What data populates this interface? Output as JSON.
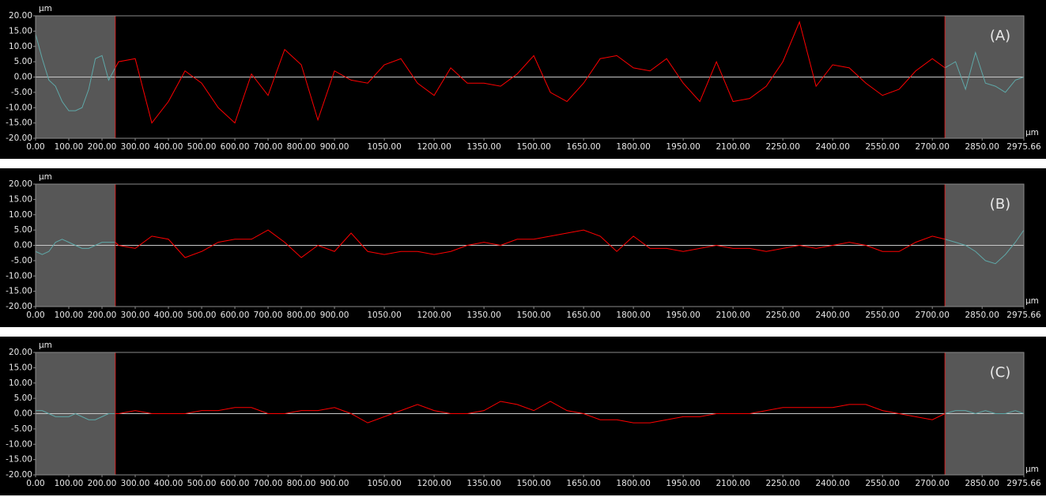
{
  "chart_data": [
    {
      "type": "line",
      "annotation": "(A)",
      "y_unit": "µm",
      "x_unit": "µm",
      "xlim": [
        0,
        2975.66
      ],
      "ylim": [
        -20,
        20
      ],
      "yticks": [
        {
          "value": 20,
          "label": "20.00"
        },
        {
          "value": 15,
          "label": "15.00"
        },
        {
          "value": 10,
          "label": "10.00"
        },
        {
          "value": 5,
          "label": "5.00"
        },
        {
          "value": 0,
          "label": "0.00"
        },
        {
          "value": -5,
          "label": "-5.00"
        },
        {
          "value": -10,
          "label": "-10.00"
        },
        {
          "value": -15,
          "label": "-15.00"
        },
        {
          "value": -20,
          "label": "-20.00"
        }
      ],
      "xticks": [
        {
          "value": 0,
          "label": "0.00"
        },
        {
          "value": 100,
          "label": "100.00"
        },
        {
          "value": 200,
          "label": "200.00"
        },
        {
          "value": 300,
          "label": "300.00"
        },
        {
          "value": 400,
          "label": "400.00"
        },
        {
          "value": 500,
          "label": "500.00"
        },
        {
          "value": 600,
          "label": "600.00"
        },
        {
          "value": 700,
          "label": "700.00"
        },
        {
          "value": 800,
          "label": "800.00"
        },
        {
          "value": 900,
          "label": "900.00"
        },
        {
          "value": 1050,
          "label": "1050.00"
        },
        {
          "value": 1200,
          "label": "1200.00"
        },
        {
          "value": 1350,
          "label": "1350.00"
        },
        {
          "value": 1500,
          "label": "1500.00"
        },
        {
          "value": 1650,
          "label": "1650.00"
        },
        {
          "value": 1800,
          "label": "1800.00"
        },
        {
          "value": 1950,
          "label": "1950.00"
        },
        {
          "value": 2100,
          "label": "2100.00"
        },
        {
          "value": 2250,
          "label": "2250.00"
        },
        {
          "value": 2400,
          "label": "2400.00"
        },
        {
          "value": 2550,
          "label": "2550.00"
        },
        {
          "value": 2700,
          "label": "2700.00"
        },
        {
          "value": 2850,
          "label": "2850.00"
        },
        {
          "value": 2975.66,
          "label": "2975.66"
        }
      ],
      "excluded_ranges": [
        [
          0,
          240
        ],
        [
          2738,
          2975.66
        ]
      ],
      "shade_color": "#575757",
      "boundary_color": "#d02020",
      "series": [
        {
          "color": "#5fa8a8",
          "x": [
            0,
            20,
            40,
            60,
            80,
            100,
            120,
            140,
            160,
            180,
            200,
            220,
            240
          ],
          "values": [
            14,
            6,
            -1,
            -3,
            -8,
            -11,
            -11,
            -10,
            -4,
            6,
            7,
            -1,
            3
          ]
        },
        {
          "color": "#ff0000",
          "x": [
            240,
            250,
            300,
            350,
            400,
            450,
            500,
            550,
            600,
            650,
            700,
            750,
            800,
            850,
            900,
            950,
            1000,
            1050,
            1100,
            1150,
            1200,
            1250,
            1300,
            1350,
            1400,
            1450,
            1500,
            1550,
            1600,
            1650,
            1700,
            1750,
            1800,
            1850,
            1900,
            1950,
            2000,
            2050,
            2100,
            2150,
            2200,
            2250,
            2300,
            2350,
            2400,
            2450,
            2500,
            2550,
            2600,
            2650,
            2700,
            2738
          ],
          "values": [
            3,
            5,
            6,
            -15,
            -8,
            2,
            -2,
            -10,
            -15,
            1,
            -6,
            9,
            4,
            -14,
            2,
            -1,
            -2,
            4,
            6,
            -2,
            -6,
            3,
            -2,
            -2,
            -3,
            1,
            7,
            -5,
            -8,
            -2,
            6,
            7,
            3,
            2,
            6,
            -2,
            -8,
            5,
            -8,
            -7,
            -3,
            5,
            18,
            -3,
            4,
            3,
            -2,
            -6,
            -4,
            2,
            6,
            3
          ]
        },
        {
          "color": "#5fa8a8",
          "x": [
            2738,
            2770,
            2800,
            2830,
            2860,
            2890,
            2920,
            2950,
            2975.66
          ],
          "values": [
            3,
            5,
            -4,
            8,
            -2,
            -3,
            -5,
            -1,
            0
          ]
        }
      ]
    },
    {
      "type": "line",
      "annotation": "(B)",
      "y_unit": "µm",
      "x_unit": "µm",
      "xlim": [
        0,
        2975.66
      ],
      "ylim": [
        -20,
        20
      ],
      "yticks": [
        {
          "value": 20,
          "label": "20.00"
        },
        {
          "value": 15,
          "label": "15.00"
        },
        {
          "value": 10,
          "label": "10.00"
        },
        {
          "value": 5,
          "label": "5.00"
        },
        {
          "value": 0,
          "label": "0.00"
        },
        {
          "value": -5,
          "label": "-5.00"
        },
        {
          "value": -10,
          "label": "-10.00"
        },
        {
          "value": -15,
          "label": "-15.00"
        },
        {
          "value": -20,
          "label": "-20.00"
        }
      ],
      "xticks": [
        {
          "value": 0,
          "label": "0.00"
        },
        {
          "value": 100,
          "label": "100.00"
        },
        {
          "value": 200,
          "label": "200.00"
        },
        {
          "value": 300,
          "label": "300.00"
        },
        {
          "value": 400,
          "label": "400.00"
        },
        {
          "value": 500,
          "label": "500.00"
        },
        {
          "value": 600,
          "label": "600.00"
        },
        {
          "value": 700,
          "label": "700.00"
        },
        {
          "value": 800,
          "label": "800.00"
        },
        {
          "value": 900,
          "label": "900.00"
        },
        {
          "value": 1050,
          "label": "1050.00"
        },
        {
          "value": 1200,
          "label": "1200.00"
        },
        {
          "value": 1350,
          "label": "1350.00"
        },
        {
          "value": 1500,
          "label": "1500.00"
        },
        {
          "value": 1650,
          "label": "1650.00"
        },
        {
          "value": 1800,
          "label": "1800.00"
        },
        {
          "value": 1950,
          "label": "1950.00"
        },
        {
          "value": 2100,
          "label": "2100.00"
        },
        {
          "value": 2250,
          "label": "2250.00"
        },
        {
          "value": 2400,
          "label": "2400.00"
        },
        {
          "value": 2550,
          "label": "2550.00"
        },
        {
          "value": 2700,
          "label": "2700.00"
        },
        {
          "value": 2850,
          "label": "2850.00"
        },
        {
          "value": 2975.66,
          "label": "2975.66"
        }
      ],
      "excluded_ranges": [
        [
          0,
          240
        ],
        [
          2738,
          2975.66
        ]
      ],
      "shade_color": "#575757",
      "boundary_color": "#d02020",
      "series": [
        {
          "color": "#5fa8a8",
          "x": [
            0,
            20,
            40,
            60,
            80,
            100,
            120,
            140,
            160,
            180,
            200,
            220,
            240
          ],
          "values": [
            -2,
            -3,
            -2,
            1,
            2,
            1,
            0,
            -1,
            -1,
            0,
            1,
            1,
            1
          ]
        },
        {
          "color": "#ff0000",
          "x": [
            240,
            250,
            300,
            350,
            400,
            450,
            500,
            550,
            600,
            650,
            700,
            750,
            800,
            850,
            900,
            950,
            1000,
            1050,
            1100,
            1150,
            1200,
            1250,
            1300,
            1350,
            1400,
            1450,
            1500,
            1550,
            1600,
            1650,
            1700,
            1750,
            1800,
            1850,
            1900,
            1950,
            2000,
            2050,
            2100,
            2150,
            2200,
            2250,
            2300,
            2350,
            2400,
            2450,
            2500,
            2550,
            2600,
            2650,
            2700,
            2738
          ],
          "values": [
            1,
            0,
            -1,
            3,
            2,
            -4,
            -2,
            1,
            2,
            2,
            5,
            1,
            -4,
            0,
            -2,
            4,
            -2,
            -3,
            -2,
            -2,
            -3,
            -2,
            0,
            1,
            0,
            2,
            2,
            3,
            4,
            5,
            3,
            -2,
            3,
            -1,
            -1,
            -2,
            -1,
            0,
            -1,
            -1,
            -2,
            -1,
            0,
            -1,
            0,
            1,
            0,
            -2,
            -2,
            1,
            3,
            2
          ]
        },
        {
          "color": "#5fa8a8",
          "x": [
            2738,
            2770,
            2800,
            2830,
            2860,
            2890,
            2920,
            2950,
            2975.66
          ],
          "values": [
            2,
            1,
            0,
            -2,
            -5,
            -6,
            -3,
            1,
            5
          ]
        }
      ]
    },
    {
      "type": "line",
      "annotation": "(C)",
      "y_unit": "µm",
      "x_unit": "µm",
      "xlim": [
        0,
        2975.66
      ],
      "ylim": [
        -20,
        20
      ],
      "yticks": [
        {
          "value": 20,
          "label": "20.00"
        },
        {
          "value": 15,
          "label": "15.00"
        },
        {
          "value": 10,
          "label": "10.00"
        },
        {
          "value": 5,
          "label": "5.00"
        },
        {
          "value": 0,
          "label": "0.00"
        },
        {
          "value": -5,
          "label": "-5.00"
        },
        {
          "value": -10,
          "label": "-10.00"
        },
        {
          "value": -15,
          "label": "-15.00"
        },
        {
          "value": -20,
          "label": "-20.00"
        }
      ],
      "xticks": [
        {
          "value": 0,
          "label": "0.00"
        },
        {
          "value": 100,
          "label": "100.00"
        },
        {
          "value": 200,
          "label": "200.00"
        },
        {
          "value": 300,
          "label": "300.00"
        },
        {
          "value": 400,
          "label": "400.00"
        },
        {
          "value": 500,
          "label": "500.00"
        },
        {
          "value": 600,
          "label": "600.00"
        },
        {
          "value": 700,
          "label": "700.00"
        },
        {
          "value": 800,
          "label": "800.00"
        },
        {
          "value": 900,
          "label": "900.00"
        },
        {
          "value": 1050,
          "label": "1050.00"
        },
        {
          "value": 1200,
          "label": "1200.00"
        },
        {
          "value": 1350,
          "label": "1350.00"
        },
        {
          "value": 1500,
          "label": "1500.00"
        },
        {
          "value": 1650,
          "label": "1650.00"
        },
        {
          "value": 1800,
          "label": "1800.00"
        },
        {
          "value": 1950,
          "label": "1950.00"
        },
        {
          "value": 2100,
          "label": "2100.00"
        },
        {
          "value": 2250,
          "label": "2250.00"
        },
        {
          "value": 2400,
          "label": "2400.00"
        },
        {
          "value": 2550,
          "label": "2550.00"
        },
        {
          "value": 2700,
          "label": "2700.00"
        },
        {
          "value": 2850,
          "label": "2850.00"
        },
        {
          "value": 2975.66,
          "label": "2975.66"
        }
      ],
      "excluded_ranges": [
        [
          0,
          240
        ],
        [
          2738,
          2975.66
        ]
      ],
      "shade_color": "#575757",
      "boundary_color": "#d02020",
      "series": [
        {
          "color": "#5fa8a8",
          "x": [
            0,
            20,
            40,
            60,
            80,
            100,
            120,
            140,
            160,
            180,
            200,
            220,
            240
          ],
          "values": [
            1,
            1,
            0,
            -1,
            -1,
            -1,
            0,
            -1,
            -2,
            -2,
            -1,
            0,
            0
          ]
        },
        {
          "color": "#ff0000",
          "x": [
            240,
            250,
            300,
            350,
            400,
            450,
            500,
            550,
            600,
            650,
            700,
            750,
            800,
            850,
            900,
            950,
            1000,
            1050,
            1100,
            1150,
            1200,
            1250,
            1300,
            1350,
            1400,
            1450,
            1500,
            1550,
            1600,
            1650,
            1700,
            1750,
            1800,
            1850,
            1900,
            1950,
            2000,
            2050,
            2100,
            2150,
            2200,
            2250,
            2300,
            2350,
            2400,
            2450,
            2500,
            2550,
            2600,
            2650,
            2700,
            2738
          ],
          "values": [
            0,
            0,
            1,
            0,
            0,
            0,
            1,
            1,
            2,
            2,
            0,
            0,
            1,
            1,
            2,
            0,
            -3,
            -1,
            1,
            3,
            1,
            0,
            0,
            1,
            4,
            3,
            1,
            4,
            1,
            0,
            -2,
            -2,
            -3,
            -3,
            -2,
            -1,
            -1,
            0,
            0,
            0,
            1,
            2,
            2,
            2,
            2,
            3,
            3,
            1,
            0,
            -1,
            -2,
            0
          ]
        },
        {
          "color": "#5fa8a8",
          "x": [
            2738,
            2770,
            2800,
            2830,
            2860,
            2890,
            2920,
            2950,
            2975.66
          ],
          "values": [
            0,
            1,
            1,
            0,
            1,
            0,
            0,
            1,
            0
          ]
        }
      ]
    }
  ]
}
